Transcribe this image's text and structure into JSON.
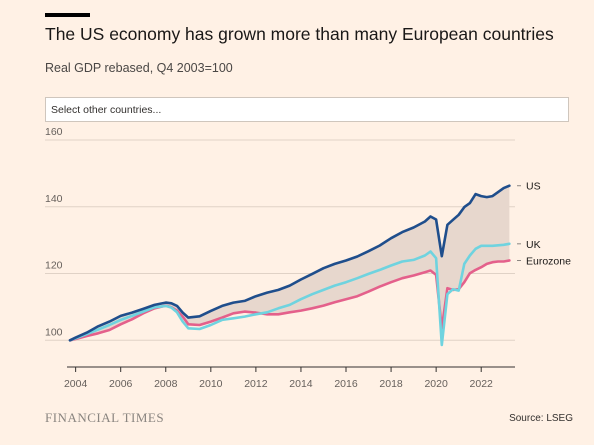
{
  "header": {
    "title": "The US economy has grown more than many European countries",
    "subtitle": "Real GDP rebased, Q4 2003=100"
  },
  "selector": {
    "placeholder": "Select other countries..."
  },
  "footer": {
    "brand": "FINANCIAL TIMES",
    "source": "Source: LSEG"
  },
  "colors": {
    "background": "#fff1e5",
    "us": "#1f4e8c",
    "uk": "#6fd3df",
    "eurozone": "#e4608b",
    "gap_fill": "#e7d7cd",
    "grid": "#e0d2c6",
    "axis": "#33302e"
  },
  "chart_data": {
    "type": "line",
    "x_unit": "year",
    "xlim": [
      2003.75,
      2023.5
    ],
    "ylim": [
      95,
      160
    ],
    "yticks": [
      100,
      120,
      140,
      160
    ],
    "xticks": [
      2004,
      2006,
      2008,
      2010,
      2012,
      2014,
      2016,
      2018,
      2020,
      2022
    ],
    "grid": "horizontal",
    "shaded_area": "between US and Eurozone",
    "series": [
      {
        "name": "US",
        "label": "US",
        "color": "#1f4e8c",
        "points": [
          [
            2003.75,
            100
          ],
          [
            2004,
            100.8
          ],
          [
            2004.5,
            102.3
          ],
          [
            2005,
            104.2
          ],
          [
            2005.5,
            105.6
          ],
          [
            2006,
            107.3
          ],
          [
            2006.5,
            108.3
          ],
          [
            2007,
            109.4
          ],
          [
            2007.5,
            110.6
          ],
          [
            2008,
            111.3
          ],
          [
            2008.25,
            111.1
          ],
          [
            2008.5,
            110.3
          ],
          [
            2008.75,
            108.3
          ],
          [
            2009,
            106.8
          ],
          [
            2009.5,
            107.2
          ],
          [
            2010,
            108.8
          ],
          [
            2010.5,
            110.3
          ],
          [
            2011,
            111.3
          ],
          [
            2011.5,
            111.8
          ],
          [
            2012,
            113.2
          ],
          [
            2012.5,
            114.3
          ],
          [
            2013,
            115.1
          ],
          [
            2013.5,
            116.4
          ],
          [
            2014,
            118.2
          ],
          [
            2014.5,
            119.9
          ],
          [
            2015,
            121.6
          ],
          [
            2015.5,
            122.9
          ],
          [
            2016,
            123.9
          ],
          [
            2016.5,
            125.1
          ],
          [
            2017,
            126.7
          ],
          [
            2017.5,
            128.4
          ],
          [
            2018,
            130.6
          ],
          [
            2018.5,
            132.4
          ],
          [
            2019,
            133.8
          ],
          [
            2019.5,
            135.6
          ],
          [
            2019.75,
            137.1
          ],
          [
            2020,
            136.2
          ],
          [
            2020.25,
            125.2
          ],
          [
            2020.5,
            134.6
          ],
          [
            2020.75,
            136.1
          ],
          [
            2021,
            137.6
          ],
          [
            2021.25,
            139.9
          ],
          [
            2021.5,
            141.1
          ],
          [
            2021.75,
            143.8
          ],
          [
            2022,
            143.2
          ],
          [
            2022.25,
            142.9
          ],
          [
            2022.5,
            143.2
          ],
          [
            2022.75,
            144.4
          ],
          [
            2023,
            145.6
          ],
          [
            2023.25,
            146.3
          ]
        ]
      },
      {
        "name": "UK",
        "label": "UK",
        "color": "#6fd3df",
        "points": [
          [
            2003.75,
            100
          ],
          [
            2004,
            100.6
          ],
          [
            2004.5,
            101.9
          ],
          [
            2005,
            103.2
          ],
          [
            2005.5,
            104.6
          ],
          [
            2006,
            106.1
          ],
          [
            2006.5,
            107.3
          ],
          [
            2007,
            108.6
          ],
          [
            2007.5,
            109.9
          ],
          [
            2008,
            110.3
          ],
          [
            2008.25,
            109.8
          ],
          [
            2008.5,
            108.4
          ],
          [
            2008.75,
            105.6
          ],
          [
            2009,
            103.6
          ],
          [
            2009.5,
            103.4
          ],
          [
            2010,
            104.6
          ],
          [
            2010.5,
            106.1
          ],
          [
            2011,
            106.6
          ],
          [
            2011.5,
            107.1
          ],
          [
            2012,
            107.8
          ],
          [
            2012.5,
            108.4
          ],
          [
            2013,
            109.6
          ],
          [
            2013.5,
            110.6
          ],
          [
            2014,
            112.3
          ],
          [
            2014.5,
            113.8
          ],
          [
            2015,
            115.1
          ],
          [
            2015.5,
            116.4
          ],
          [
            2016,
            117.4
          ],
          [
            2016.5,
            118.6
          ],
          [
            2017,
            119.9
          ],
          [
            2017.5,
            121.1
          ],
          [
            2018,
            122.4
          ],
          [
            2018.5,
            123.6
          ],
          [
            2019,
            124.1
          ],
          [
            2019.5,
            125.4
          ],
          [
            2019.75,
            126.6
          ],
          [
            2020,
            124.6
          ],
          [
            2020.25,
            98.6
          ],
          [
            2020.5,
            113.8
          ],
          [
            2020.75,
            115.3
          ],
          [
            2021,
            114.9
          ],
          [
            2021.25,
            122.9
          ],
          [
            2021.5,
            125.4
          ],
          [
            2021.75,
            127.4
          ],
          [
            2022,
            128.3
          ],
          [
            2022.5,
            128.3
          ],
          [
            2023,
            128.6
          ],
          [
            2023.25,
            128.9
          ]
        ]
      },
      {
        "name": "Eurozone",
        "label": "Eurozone",
        "color": "#e4608b",
        "points": [
          [
            2003.75,
            100
          ],
          [
            2004,
            100.4
          ],
          [
            2004.5,
            101.3
          ],
          [
            2005,
            102.1
          ],
          [
            2005.5,
            103.1
          ],
          [
            2006,
            104.8
          ],
          [
            2006.5,
            106.3
          ],
          [
            2007,
            108.1
          ],
          [
            2007.5,
            109.6
          ],
          [
            2008,
            110.4
          ],
          [
            2008.25,
            109.9
          ],
          [
            2008.5,
            108.9
          ],
          [
            2008.75,
            107.1
          ],
          [
            2009,
            104.8
          ],
          [
            2009.5,
            104.6
          ],
          [
            2010,
            105.6
          ],
          [
            2010.5,
            106.8
          ],
          [
            2011,
            108.1
          ],
          [
            2011.5,
            108.6
          ],
          [
            2012,
            108.3
          ],
          [
            2012.5,
            107.8
          ],
          [
            2013,
            107.8
          ],
          [
            2013.5,
            108.4
          ],
          [
            2014,
            108.9
          ],
          [
            2014.5,
            109.6
          ],
          [
            2015,
            110.4
          ],
          [
            2015.5,
            111.4
          ],
          [
            2016,
            112.3
          ],
          [
            2016.5,
            113.2
          ],
          [
            2017,
            114.6
          ],
          [
            2017.5,
            116.1
          ],
          [
            2018,
            117.4
          ],
          [
            2018.5,
            118.6
          ],
          [
            2019,
            119.4
          ],
          [
            2019.5,
            120.4
          ],
          [
            2019.75,
            120.9
          ],
          [
            2020,
            119.6
          ],
          [
            2020.25,
            103.6
          ],
          [
            2020.5,
            115.6
          ],
          [
            2020.75,
            115.1
          ],
          [
            2021,
            115.3
          ],
          [
            2021.25,
            117.4
          ],
          [
            2021.5,
            120.1
          ],
          [
            2021.75,
            121.1
          ],
          [
            2022,
            121.9
          ],
          [
            2022.25,
            122.9
          ],
          [
            2022.5,
            123.4
          ],
          [
            2022.75,
            123.6
          ],
          [
            2023,
            123.6
          ],
          [
            2023.25,
            123.9
          ]
        ]
      }
    ]
  }
}
